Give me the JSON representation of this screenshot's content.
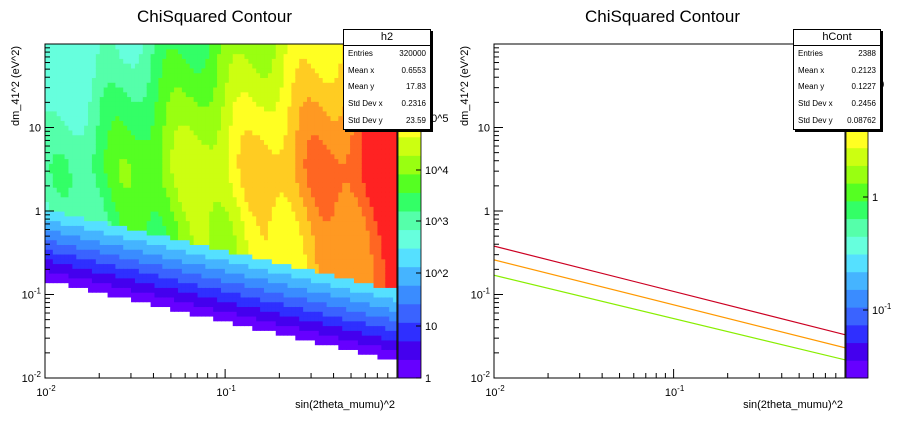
{
  "chart_data": [
    {
      "type": "heatmap",
      "title": "ChiSquared Contour",
      "xlabel": "sin(2theta_mumu)^2",
      "ylabel": "dm_41^2 (eV^2)",
      "x_scale": "log",
      "y_scale": "log",
      "xlim": [
        0.01,
        0.9
      ],
      "ylim": [
        0.01,
        100
      ],
      "x_ticks": [
        "10^{-2}",
        "10^{-1}"
      ],
      "y_ticks": [
        "10^{-2}",
        "10^{-1}",
        "1",
        "10"
      ],
      "z_scale": "log",
      "z_ticks": [
        "1",
        "10",
        "10^2",
        "10^3",
        "10^4",
        "10^5"
      ],
      "lower_boundary": {
        "x": [
          0.01,
          0.9
        ],
        "y": [
          0.15,
          0.016
        ]
      },
      "stats": {
        "name": "h2",
        "rows": [
          {
            "label": "Entries",
            "value": "320000"
          },
          {
            "label": "Mean x",
            "value": "0.6553"
          },
          {
            "label": "Mean y",
            "value": "17.83"
          },
          {
            "label": "Std Dev x",
            "value": "0.2316"
          },
          {
            "label": "Std Dev y",
            "value": "23.59"
          }
        ]
      },
      "palette": [
        "#6600ff",
        "#4400ee",
        "#2f2fff",
        "#3a63ff",
        "#3a8cff",
        "#45b4ff",
        "#55e0ff",
        "#66ffdd",
        "#55ffaa",
        "#33ff66",
        "#55ff22",
        "#99ff11",
        "#ccff11",
        "#ffff22",
        "#ffcc22",
        "#ff9922",
        "#ff6622",
        "#ff2222"
      ]
    },
    {
      "type": "line",
      "title": "ChiSquared Contour",
      "xlabel": "sin(2theta_mumu)^2",
      "ylabel": "dm_41^2 (eV^2)",
      "x_scale": "log",
      "y_scale": "log",
      "xlim": [
        0.01,
        0.9
      ],
      "ylim": [
        0.01,
        100
      ],
      "x_ticks": [
        "10^{-2}",
        "10^{-1}"
      ],
      "y_ticks": [
        "10^{-2}",
        "10^{-1}",
        "1",
        "10"
      ],
      "z_ticks": [
        "10^{-1}",
        "1",
        "10"
      ],
      "series": [
        {
          "color": "#cc0022",
          "x": [
            0.01,
            0.9
          ],
          "y": [
            0.38,
            0.033
          ]
        },
        {
          "color": "#ff9900",
          "x": [
            0.01,
            0.9
          ],
          "y": [
            0.26,
            0.023
          ]
        },
        {
          "color": "#88ee00",
          "x": [
            0.01,
            0.9
          ],
          "y": [
            0.17,
            0.0165
          ]
        }
      ],
      "stats": {
        "name": "hCont",
        "rows": [
          {
            "label": "Entries",
            "value": "2388"
          },
          {
            "label": "Mean x",
            "value": "0.2123"
          },
          {
            "label": "Mean y",
            "value": "0.1227"
          },
          {
            "label": "Std Dev x",
            "value": "0.2456"
          },
          {
            "label": "Std Dev y",
            "value": "0.08762"
          }
        ]
      },
      "palette": [
        "#6600ff",
        "#4400ee",
        "#2f2fff",
        "#3a63ff",
        "#3a8cff",
        "#45b4ff",
        "#55e0ff",
        "#66ffdd",
        "#55ffaa",
        "#33ff66",
        "#55ff22",
        "#99ff11",
        "#ccff11",
        "#ffff22"
      ]
    }
  ]
}
